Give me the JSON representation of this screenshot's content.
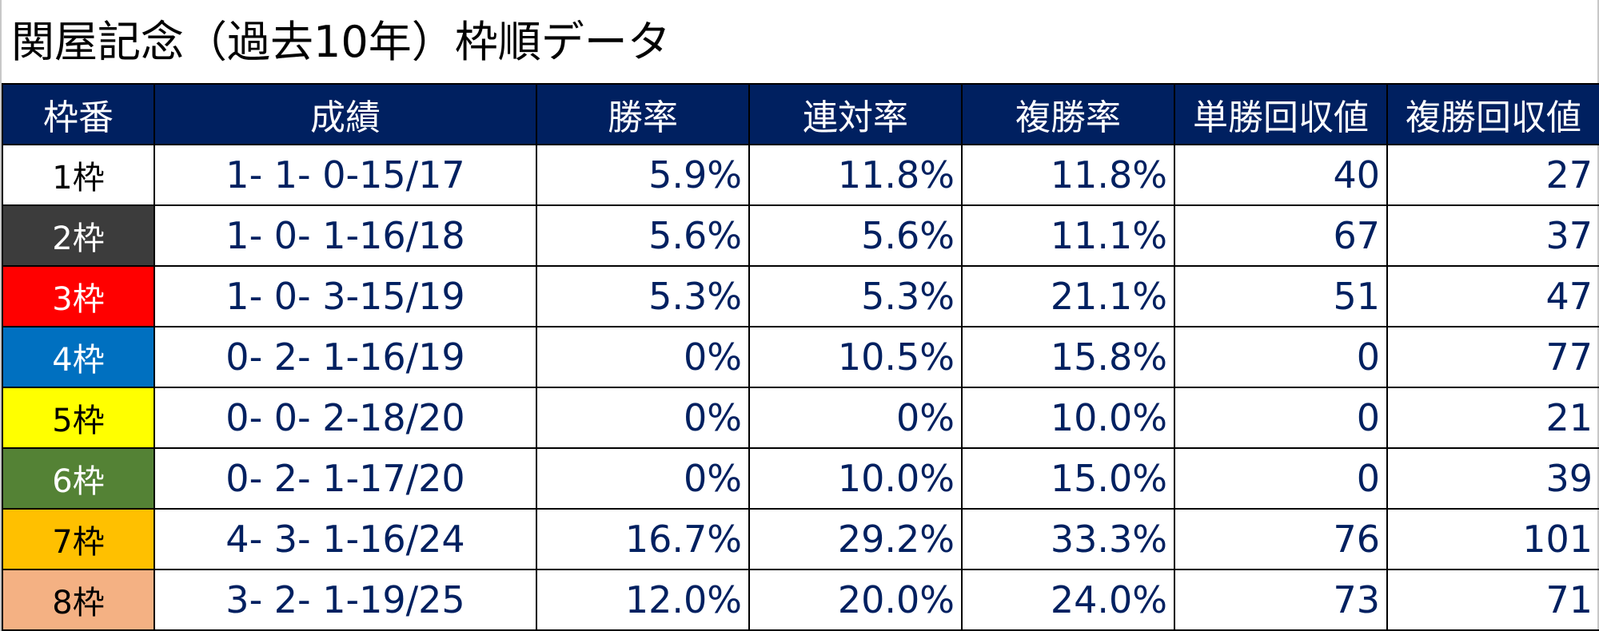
{
  "title": "関屋記念（過去10年）枠順データ",
  "colors": {
    "header_bg": "#002060",
    "header_text": "#ffffff",
    "data_text": "#002060"
  },
  "headers": [
    "枠番",
    "成績",
    "勝率",
    "連対率",
    "複勝率",
    "単勝回収値",
    "複勝回収値"
  ],
  "rows": [
    {
      "frame": "1枠",
      "record": "1- 1- 0-15/17",
      "win_rate": "5.9%",
      "quinella_rate": "11.8%",
      "place_rate": "11.8%",
      "win_return": "40",
      "place_return": "27",
      "bg": "#ffffff",
      "fg": "#000000"
    },
    {
      "frame": "2枠",
      "record": "1- 0- 1-16/18",
      "win_rate": "5.6%",
      "quinella_rate": "5.6%",
      "place_rate": "11.1%",
      "win_return": "67",
      "place_return": "37",
      "bg": "#3c3c3c",
      "fg": "#ffffff"
    },
    {
      "frame": "3枠",
      "record": "1- 0- 3-15/19",
      "win_rate": "5.3%",
      "quinella_rate": "5.3%",
      "place_rate": "21.1%",
      "win_return": "51",
      "place_return": "47",
      "bg": "#ff0000",
      "fg": "#ffffff"
    },
    {
      "frame": "4枠",
      "record": "0- 2- 1-16/19",
      "win_rate": "0%",
      "quinella_rate": "10.5%",
      "place_rate": "15.8%",
      "win_return": "0",
      "place_return": "77",
      "bg": "#0070c0",
      "fg": "#ffffff"
    },
    {
      "frame": "5枠",
      "record": "0- 0- 2-18/20",
      "win_rate": "0%",
      "quinella_rate": "0%",
      "place_rate": "10.0%",
      "win_return": "0",
      "place_return": "21",
      "bg": "#ffff00",
      "fg": "#000000"
    },
    {
      "frame": "6枠",
      "record": "0- 2- 1-17/20",
      "win_rate": "0%",
      "quinella_rate": "10.0%",
      "place_rate": "15.0%",
      "win_return": "0",
      "place_return": "39",
      "bg": "#548235",
      "fg": "#ffffff"
    },
    {
      "frame": "7枠",
      "record": "4- 3- 1-16/24",
      "win_rate": "16.7%",
      "quinella_rate": "29.2%",
      "place_rate": "33.3%",
      "win_return": "76",
      "place_return": "101",
      "bg": "#ffc000",
      "fg": "#000000"
    },
    {
      "frame": "8枠",
      "record": "3- 2- 1-19/25",
      "win_rate": "12.0%",
      "quinella_rate": "20.0%",
      "place_rate": "24.0%",
      "win_return": "73",
      "place_return": "71",
      "bg": "#f4b183",
      "fg": "#000000"
    }
  ]
}
